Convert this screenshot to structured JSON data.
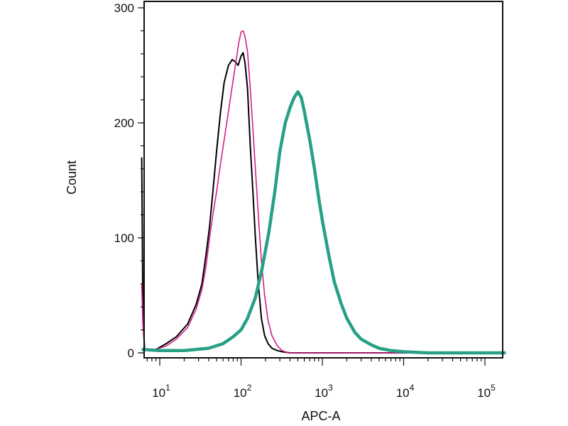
{
  "chart_data": {
    "type": "line",
    "x_scale": "log",
    "xlabel": "APC-A",
    "ylabel": "Count",
    "xlim": [
      6,
      200000
    ],
    "ylim": [
      0,
      305
    ],
    "grid": false,
    "legend": "none",
    "y_ticks": [
      {
        "value": 0,
        "label": "0"
      },
      {
        "value": 100,
        "label": "100"
      },
      {
        "value": 200,
        "label": "200"
      },
      {
        "value": 300,
        "label": "300"
      }
    ],
    "x_ticks": [
      {
        "value": 10,
        "base": "10",
        "exp": "1"
      },
      {
        "value": 100,
        "base": "10",
        "exp": "2"
      },
      {
        "value": 1000,
        "base": "10",
        "exp": "3"
      },
      {
        "value": 10000,
        "base": "10",
        "exp": "4"
      },
      {
        "value": 100000,
        "base": "10",
        "exp": "5"
      }
    ],
    "series": [
      {
        "color": "#000000",
        "width": 2,
        "points": [
          [
            6,
            170
          ],
          [
            6.2,
            40
          ],
          [
            6.5,
            3
          ],
          [
            7.5,
            3
          ],
          [
            9,
            3
          ],
          [
            12,
            8
          ],
          [
            16,
            14
          ],
          [
            22,
            25
          ],
          [
            28,
            42
          ],
          [
            33,
            60
          ],
          [
            37,
            85
          ],
          [
            41,
            110
          ],
          [
            45,
            140
          ],
          [
            50,
            175
          ],
          [
            56,
            210
          ],
          [
            62,
            235
          ],
          [
            70,
            250
          ],
          [
            78,
            255
          ],
          [
            85,
            253
          ],
          [
            92,
            250
          ],
          [
            100,
            258
          ],
          [
            106,
            261
          ],
          [
            112,
            252
          ],
          [
            120,
            230
          ],
          [
            130,
            180
          ],
          [
            140,
            140
          ],
          [
            150,
            100
          ],
          [
            163,
            60
          ],
          [
            178,
            30
          ],
          [
            195,
            15
          ],
          [
            215,
            8
          ],
          [
            240,
            4
          ],
          [
            280,
            2
          ],
          [
            320,
            1
          ],
          [
            400,
            0
          ],
          [
            180000,
            0
          ]
        ]
      },
      {
        "color": "#d0208a",
        "width": 1.6,
        "points": [
          [
            6,
            60
          ],
          [
            6.2,
            25
          ],
          [
            6.5,
            3
          ],
          [
            7.5,
            3
          ],
          [
            9,
            3
          ],
          [
            12,
            6
          ],
          [
            16,
            12
          ],
          [
            22,
            22
          ],
          [
            28,
            38
          ],
          [
            33,
            55
          ],
          [
            37,
            75
          ],
          [
            41,
            100
          ],
          [
            45,
            120
          ],
          [
            50,
            140
          ],
          [
            56,
            165
          ],
          [
            62,
            185
          ],
          [
            70,
            210
          ],
          [
            78,
            232
          ],
          [
            86,
            252
          ],
          [
            94,
            270
          ],
          [
            100,
            279
          ],
          [
            106,
            280
          ],
          [
            112,
            275
          ],
          [
            120,
            262
          ],
          [
            130,
            230
          ],
          [
            140,
            195
          ],
          [
            150,
            160
          ],
          [
            163,
            120
          ],
          [
            178,
            80
          ],
          [
            195,
            50
          ],
          [
            215,
            28
          ],
          [
            240,
            15
          ],
          [
            280,
            6
          ],
          [
            320,
            2
          ],
          [
            380,
            0
          ],
          [
            180000,
            0
          ]
        ]
      },
      {
        "color": "#27a085",
        "width": 4.5,
        "points": [
          [
            6,
            3
          ],
          [
            10,
            2
          ],
          [
            20,
            2
          ],
          [
            40,
            4
          ],
          [
            60,
            8
          ],
          [
            80,
            14
          ],
          [
            100,
            20
          ],
          [
            120,
            30
          ],
          [
            150,
            48
          ],
          [
            180,
            72
          ],
          [
            220,
            105
          ],
          [
            260,
            140
          ],
          [
            300,
            175
          ],
          [
            350,
            200
          ],
          [
            400,
            213
          ],
          [
            450,
            222
          ],
          [
            500,
            227
          ],
          [
            550,
            222
          ],
          [
            600,
            210
          ],
          [
            700,
            185
          ],
          [
            800,
            160
          ],
          [
            900,
            135
          ],
          [
            1000,
            115
          ],
          [
            1200,
            85
          ],
          [
            1400,
            62
          ],
          [
            1700,
            43
          ],
          [
            2000,
            30
          ],
          [
            2500,
            18
          ],
          [
            3000,
            12
          ],
          [
            4000,
            7
          ],
          [
            5000,
            4
          ],
          [
            7000,
            2
          ],
          [
            10000,
            1
          ],
          [
            20000,
            0
          ],
          [
            180000,
            0
          ]
        ]
      }
    ]
  }
}
